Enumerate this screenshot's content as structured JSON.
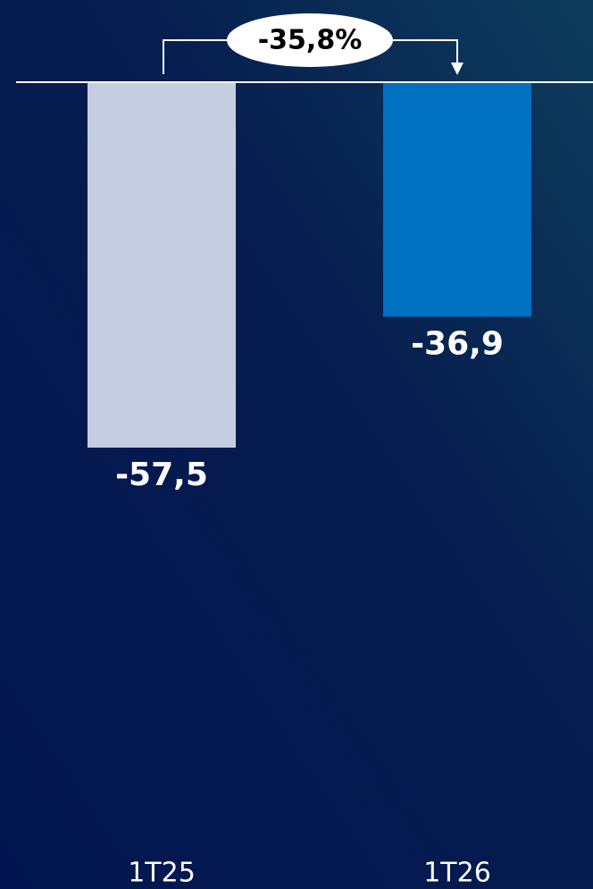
{
  "chart_data": {
    "type": "bar",
    "categories": [
      "1T25",
      "1T26"
    ],
    "values": [
      -57.5,
      -36.9
    ],
    "value_labels": [
      "-57,5",
      "-36,9"
    ],
    "colors": [
      "#c5cde0",
      "#0070c0"
    ],
    "annotation": "-35,8%"
  }
}
